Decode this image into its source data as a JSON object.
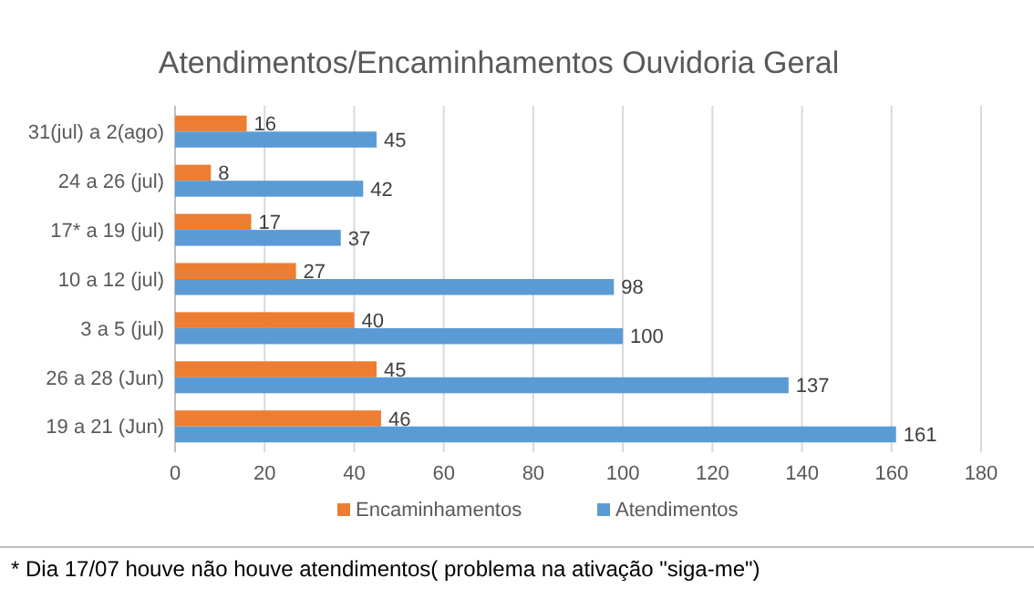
{
  "chart_data": {
    "type": "bar",
    "orientation": "horizontal",
    "title": "Atendimentos/Encaminhamentos Ouvidoria Geral",
    "categories": [
      "31(jul) a 2(ago)",
      "24 a 26 (jul)",
      "17* a 19 (jul)",
      "10 a 12 (jul)",
      "3 a 5 (jul)",
      "26 a 28 (Jun)",
      "19 a 21 (Jun)"
    ],
    "series": [
      {
        "name": "Encaminhamentos",
        "color": "#ed7d31",
        "values": [
          16,
          8,
          17,
          27,
          40,
          45,
          46
        ]
      },
      {
        "name": "Atendimentos",
        "color": "#5b9bd5",
        "values": [
          45,
          42,
          37,
          98,
          100,
          137,
          161
        ]
      }
    ],
    "xlim": [
      0,
      180
    ],
    "xticks": [
      0,
      20,
      40,
      60,
      80,
      100,
      120,
      140,
      160,
      180
    ],
    "grid": "x",
    "legend": "bottom",
    "data_labels": true,
    "annotations": [
      "* Dia 17/07 houve não houve atendimentos( problema na ativação \"siga-me\")"
    ]
  }
}
